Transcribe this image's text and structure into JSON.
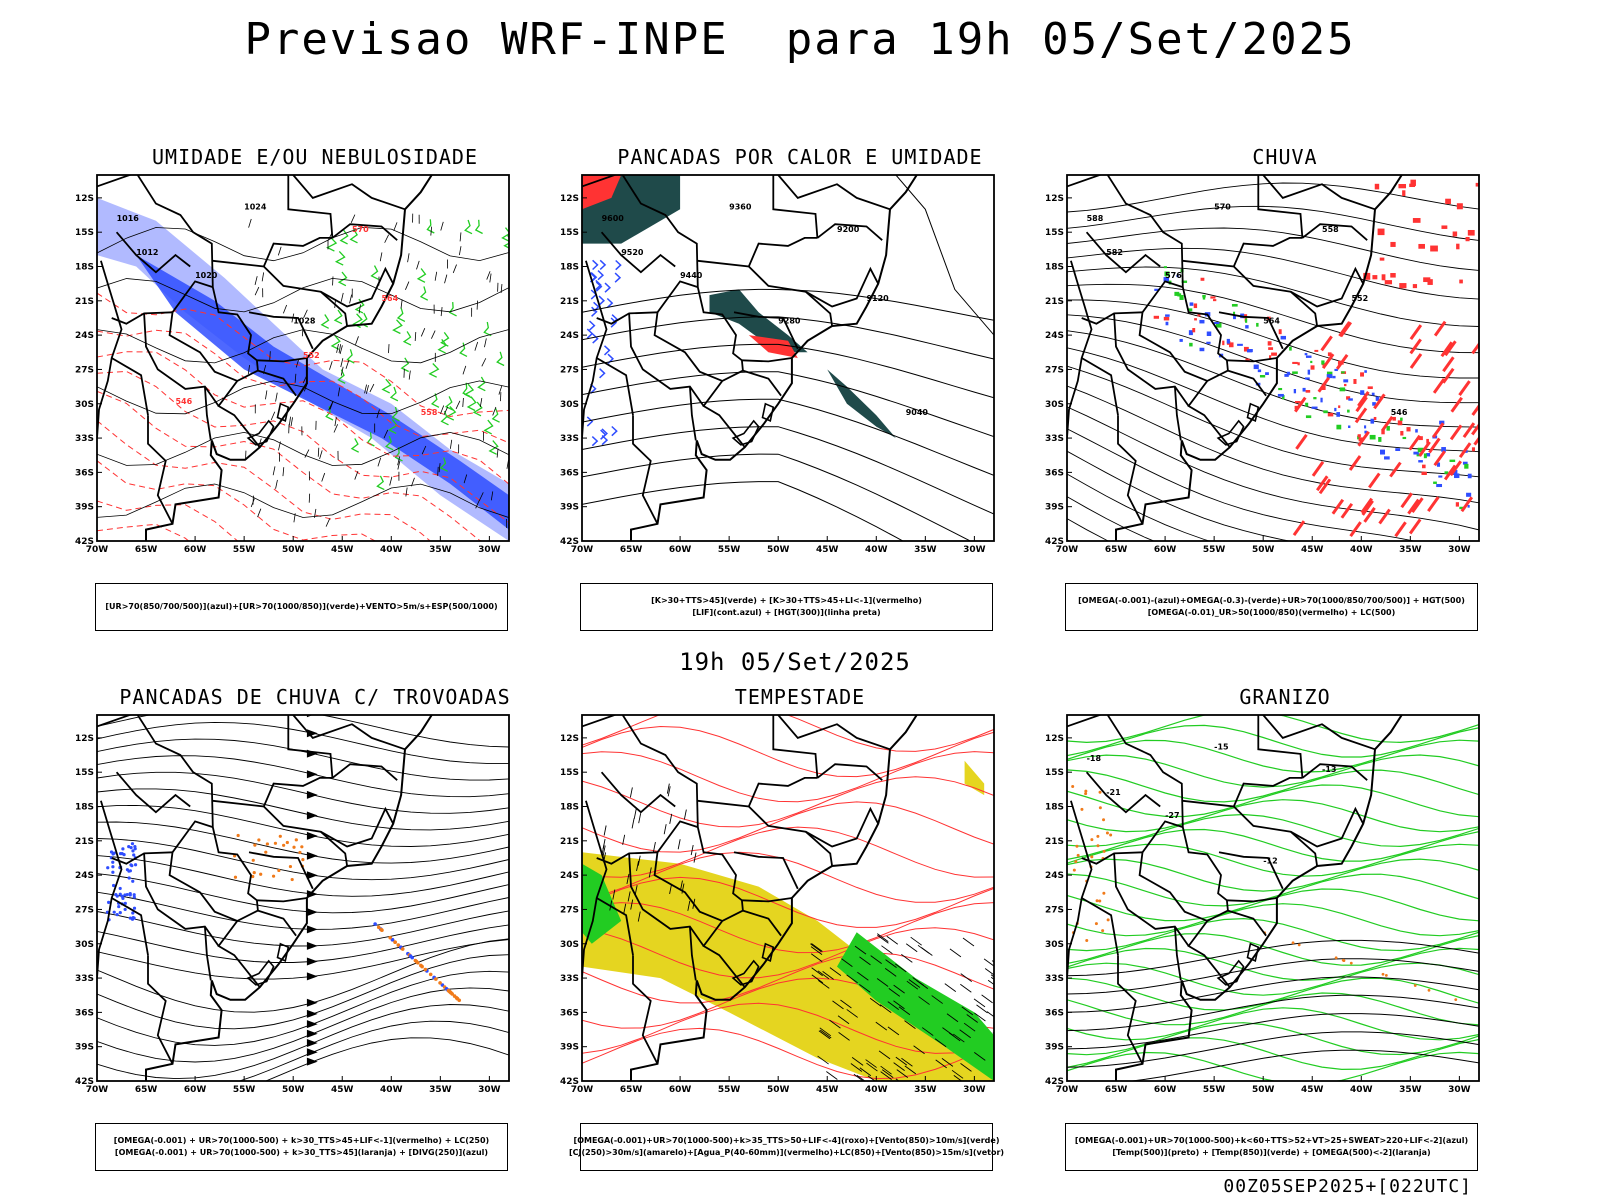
{
  "main_title": "Previsao WRF-INPE  para 19h 05/Set/2025",
  "mid_title": "19h 05/Set/2025",
  "footer": "00Z05SEP2025+[022UTC]",
  "colors": {
    "blue": "#2f4dff",
    "lightblue": "#a9b3ff",
    "green": "#22cc22",
    "red": "#ff3333",
    "darkteal": "#1f4a4a",
    "yellow": "#e5d520",
    "orange": "#f07a1a"
  },
  "chart_data": [
    {
      "type": "map",
      "title": "UMIDADE E/OU NEBULOSIDADE",
      "legend": [
        "[UR>70(850/700/500)](azul)+[UR>70(1000/850)](verde)+VENTO>5m/s+ESP(500/1000)"
      ],
      "contour_labels": [
        "1016",
        "1012",
        "1020",
        "1024",
        "1028",
        "570",
        "564",
        "558",
        "546",
        "552"
      ],
      "x_ticks": [
        "70W",
        "65W",
        "60W",
        "55W",
        "50W",
        "45W",
        "40W",
        "35W",
        "30W"
      ],
      "y_ticks": [
        "12S",
        "15S",
        "18S",
        "21S",
        "24S",
        "27S",
        "30S",
        "33S",
        "36S",
        "39S",
        "42S"
      ],
      "xlim": [
        -70,
        -28
      ],
      "ylim": [
        -42,
        -10
      ]
    },
    {
      "type": "map",
      "title": "PANCADAS POR CALOR E UMIDADE",
      "legend": [
        "[K>30+TTS>45](verde) + [K>30+TTS>45+LI<-1](vermelho)",
        "[LIF](cont.azul) + [HGT(300)](linha preta)"
      ],
      "contour_labels": [
        "9600",
        "9520",
        "9440",
        "9360",
        "9280",
        "9200",
        "9120",
        "9040"
      ],
      "x_ticks": [
        "70W",
        "65W",
        "60W",
        "55W",
        "50W",
        "45W",
        "40W",
        "35W",
        "30W"
      ],
      "y_ticks": [
        "12S",
        "15S",
        "18S",
        "21S",
        "24S",
        "27S",
        "30S",
        "33S",
        "36S",
        "39S",
        "42S"
      ],
      "xlim": [
        -70,
        -28
      ],
      "ylim": [
        -42,
        -10
      ]
    },
    {
      "type": "map",
      "title": "CHUVA",
      "legend": [
        "[OMEGA(-0.001)-(azul)+OMEGA(-0.3)-(verde)+UR>70(1000/850/700/500)] + HGT(500)",
        "[OMEGA(-0.01)_UR>50(1000/850)(vermelho) + LC(500)"
      ],
      "contour_labels": [
        "588",
        "582",
        "576",
        "570",
        "564",
        "558",
        "552",
        "546"
      ],
      "x_ticks": [
        "70W",
        "65W",
        "60W",
        "55W",
        "50W",
        "45W",
        "40W",
        "35W",
        "30W"
      ],
      "y_ticks": [
        "12S",
        "15S",
        "18S",
        "21S",
        "24S",
        "27S",
        "30S",
        "33S",
        "36S",
        "39S",
        "42S"
      ],
      "xlim": [
        -70,
        -28
      ],
      "ylim": [
        -42,
        -10
      ]
    },
    {
      "type": "map",
      "title": "PANCADAS DE CHUVA C/ TROVOADAS",
      "legend": [
        "[OMEGA(-0.001) + UR>70(1000-500) + k>30_TTS>45+LIF<-1](vermelho) + LC(250)",
        "[OMEGA(-0.001) + UR>70(1000-500) + k>30_TTS>45](laranja) + [DIVG(250)](azul)"
      ],
      "contour_labels": [],
      "x_ticks": [
        "70W",
        "65W",
        "60W",
        "55W",
        "50W",
        "45W",
        "40W",
        "35W",
        "30W"
      ],
      "y_ticks": [
        "12S",
        "15S",
        "18S",
        "21S",
        "24S",
        "27S",
        "30S",
        "33S",
        "36S",
        "39S",
        "42S"
      ],
      "xlim": [
        -70,
        -28
      ],
      "ylim": [
        -42,
        -10
      ]
    },
    {
      "type": "map",
      "title": "TEMPESTADE",
      "legend": [
        "[OMEGA(-0.001)+UR>70(1000-500)+k>35_TTS>50+LIF<-4](roxo)+[Vento(850)>10m/s](verde)",
        "[CJ(250)>30m/s](amarelo)+[Agua_P(40-60mm)](vermelho)+LC(850)+[Vento(850)>15m/s](vetor)"
      ],
      "contour_labels": [],
      "x_ticks": [
        "70W",
        "65W",
        "60W",
        "55W",
        "50W",
        "45W",
        "40W",
        "35W",
        "30W"
      ],
      "y_ticks": [
        "12S",
        "15S",
        "18S",
        "21S",
        "24S",
        "27S",
        "30S",
        "33S",
        "36S",
        "39S",
        "42S"
      ],
      "xlim": [
        -70,
        -28
      ],
      "ylim": [
        -42,
        -10
      ]
    },
    {
      "type": "map",
      "title": "GRANIZO",
      "legend": [
        "[OMEGA(-0.001)+UR>70(1000-500)+k<60+TTS>52+VT>25+SWEAT>220+LIF<-2](azul)",
        "[Temp(500)](preto) + [Temp(850)](verde) + [OMEGA(500)<-2](laranja)"
      ],
      "contour_labels": [
        "-18",
        "-21",
        "-27",
        "-15",
        "-12",
        "-13"
      ],
      "x_ticks": [
        "70W",
        "65W",
        "60W",
        "55W",
        "50W",
        "45W",
        "40W",
        "35W",
        "30W"
      ],
      "y_ticks": [
        "12S",
        "15S",
        "18S",
        "21S",
        "24S",
        "27S",
        "30S",
        "33S",
        "36S",
        "39S",
        "42S"
      ],
      "xlim": [
        -70,
        -28
      ],
      "ylim": [
        -42,
        -10
      ]
    }
  ]
}
